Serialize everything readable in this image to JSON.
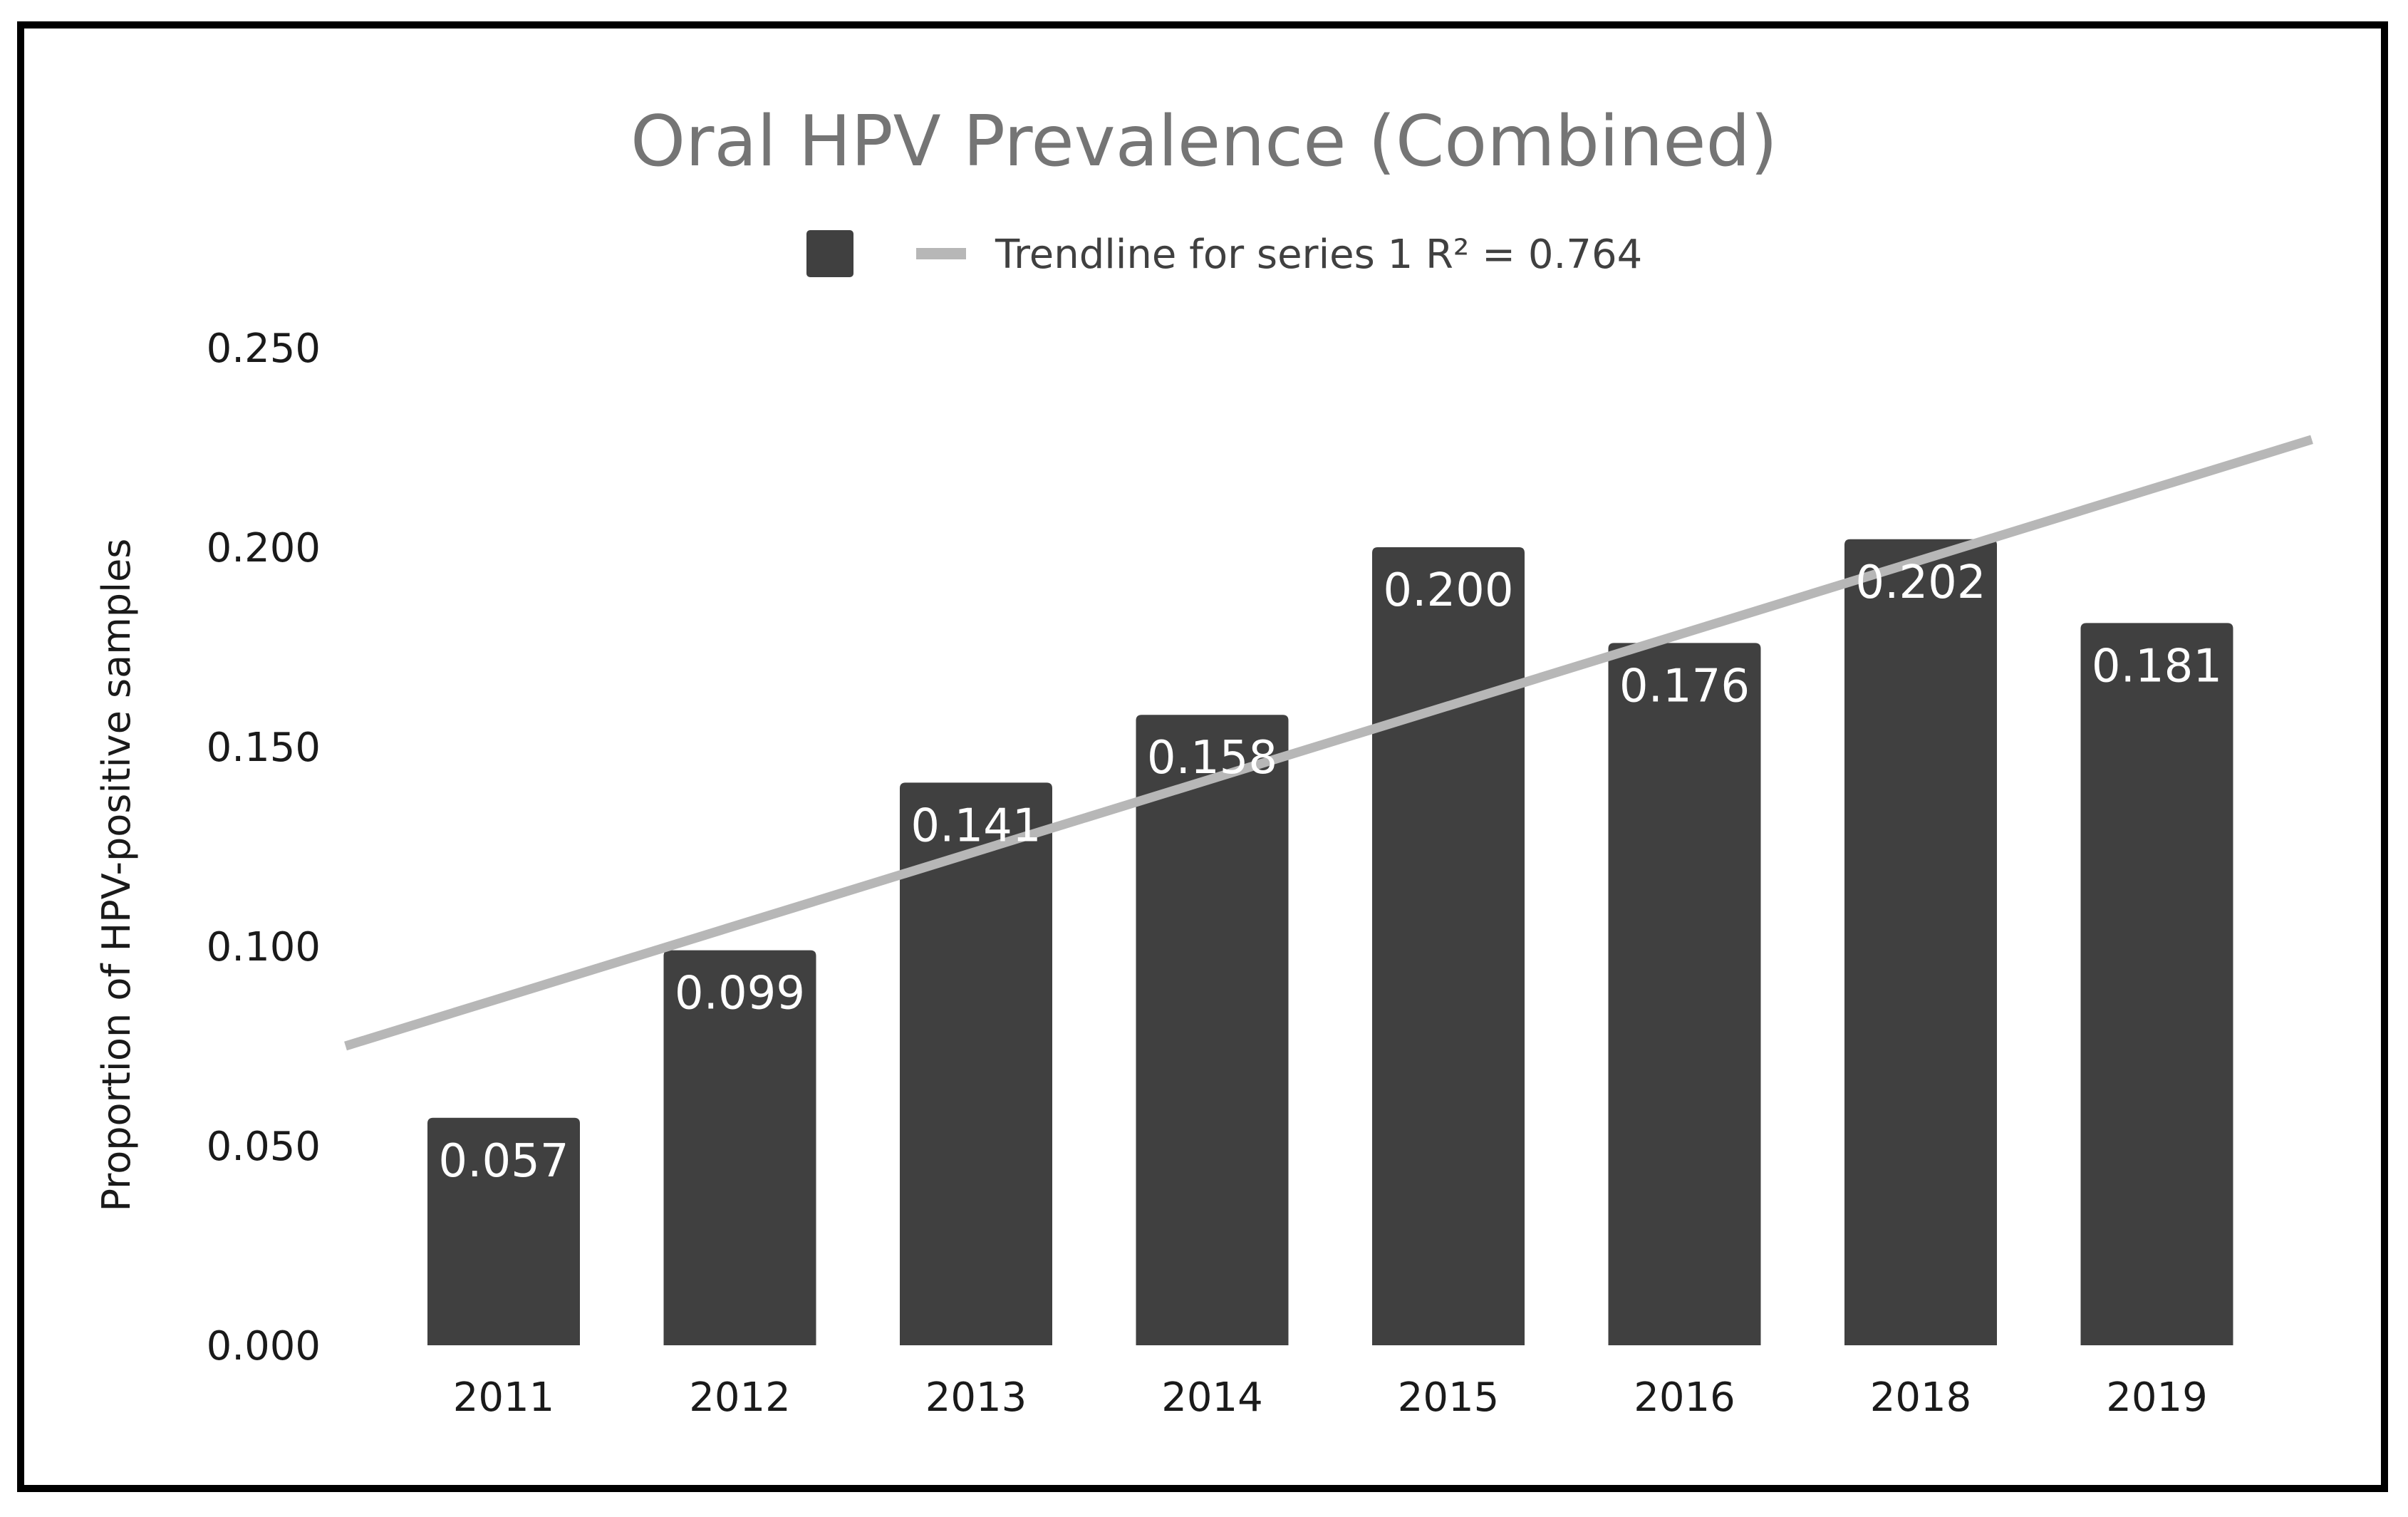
{
  "chart_data": {
    "type": "bar",
    "title": "Oral HPV Prevalence (Combined)",
    "xlabel": "",
    "ylabel": "Proportion of HPV-positive samples",
    "categories": [
      "2011",
      "2012",
      "2013",
      "2014",
      "2015",
      "2016",
      "2018",
      "2019"
    ],
    "values": [
      0.057,
      0.099,
      0.141,
      0.158,
      0.2,
      0.176,
      0.202,
      0.181
    ],
    "data_labels": [
      "0.057",
      "0.099",
      "0.141",
      "0.158",
      "0.200",
      "0.176",
      "0.202",
      "0.181"
    ],
    "ylim": [
      0,
      0.25
    ],
    "yticks": [
      "0.000",
      "0.050",
      "0.100",
      "0.150",
      "0.200",
      "0.250"
    ],
    "grid": false,
    "legend": {
      "placement": "top-center",
      "entries": [
        {
          "label": "",
          "kind": "bar-swatch"
        },
        {
          "label": "Trendline for series 1 R² = 0.764",
          "kind": "line"
        }
      ]
    },
    "trendline": {
      "r_squared": 0.764,
      "start_value": 0.075,
      "end_value": 0.227
    },
    "colors": {
      "bar": "#404040",
      "trendline": "#b7b7b7",
      "title": "#757575",
      "data_label": "#ffffff"
    }
  }
}
